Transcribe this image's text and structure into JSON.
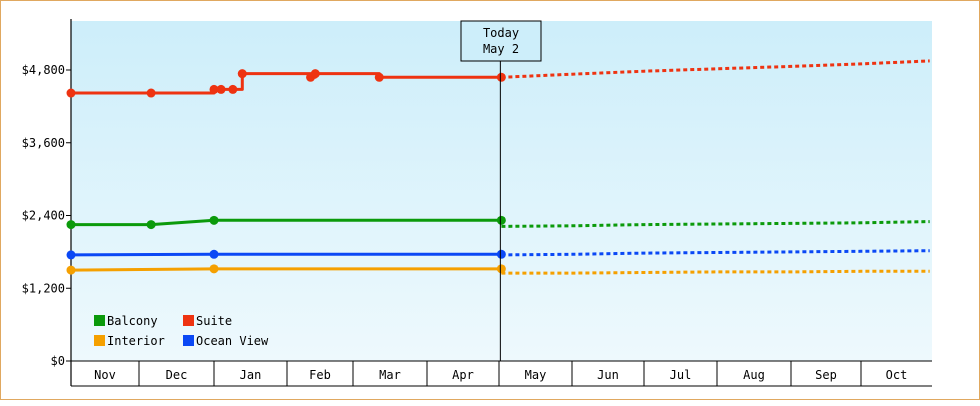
{
  "chart_data": {
    "type": "line",
    "today_label": [
      "Today",
      "May 2"
    ],
    "month_labels": [
      "Nov",
      "Dec",
      "Jan",
      "Feb",
      "Mar",
      "Apr",
      "May",
      "Jun",
      "Jul",
      "Aug",
      "Sep",
      "Oct"
    ],
    "y_ticks": [
      "$0",
      "$1,200",
      "$2,400",
      "$3,600",
      "$4,800"
    ],
    "ylim": [
      0,
      4800
    ],
    "grid": false,
    "legend_position": "bottom-left",
    "series": [
      {
        "name": "Balcony",
        "color": "#0b9a0b",
        "history_x": [
          "Nov 1",
          "Dec 6",
          "Jan 1",
          "May 2"
        ],
        "history_y": [
          2250,
          2250,
          2320,
          2320
        ],
        "history_markers": [
          "Nov 1",
          "Dec 6",
          "Jan 1",
          "May 2"
        ],
        "forecast_x": [
          "May 2",
          "Jun 1",
          "Jul 1",
          "Aug 1",
          "Sep 1",
          "Oct 1",
          "Oct 31"
        ],
        "forecast_y": [
          2220,
          2230,
          2250,
          2260,
          2270,
          2280,
          2300
        ]
      },
      {
        "name": "Suite",
        "color": "#ee3311",
        "history_x": [
          "Nov 1",
          "Dec 6",
          "Dec 28",
          "Jan 1",
          "Jan 1",
          "Jan 4",
          "Jan 9",
          "Jan 9",
          "Jan 13",
          "Jan 13",
          "Jan 29",
          "Feb 11",
          "Feb 11",
          "Feb 13",
          "Feb 13",
          "Mar 12",
          "Mar 12",
          "May 2"
        ],
        "history_y": [
          4420,
          4420,
          4420,
          4420,
          4480,
          4480,
          4480,
          4480,
          4480,
          4740,
          4740,
          4740,
          4680,
          4680,
          4740,
          4740,
          4680,
          4680
        ],
        "history_markers": [
          "Nov 1",
          "Dec 6",
          "Jan 1",
          "Jan 4",
          "Jan 9",
          "Jan 13",
          "Feb 11",
          "Feb 13",
          "Mar 12",
          "May 2"
        ],
        "forecast_x": [
          "May 2",
          "Jun 1",
          "Jul 1",
          "Aug 1",
          "Sep 1",
          "Oct 1",
          "Oct 31"
        ],
        "forecast_y": [
          4680,
          4730,
          4780,
          4820,
          4860,
          4900,
          4950
        ]
      },
      {
        "name": "Interior",
        "color": "#f5a000",
        "history_x": [
          "Nov 1",
          "Jan 1",
          "May 2"
        ],
        "history_y": [
          1500,
          1520,
          1520
        ],
        "history_markers": [
          "Nov 1",
          "Jan 1",
          "May 2"
        ],
        "forecast_x": [
          "May 2",
          "Jun 1",
          "Jul 1",
          "Aug 1",
          "Sep 1",
          "Oct 1",
          "Oct 31"
        ],
        "forecast_y": [
          1450,
          1450,
          1460,
          1470,
          1470,
          1480,
          1480
        ]
      },
      {
        "name": "Ocean View",
        "color": "#0a48f5",
        "history_x": [
          "Nov 1",
          "Jan 1",
          "May 2"
        ],
        "history_y": [
          1750,
          1760,
          1760
        ],
        "history_markers": [
          "Nov 1",
          "Jan 1",
          "May 2"
        ],
        "forecast_x": [
          "May 2",
          "Jun 1",
          "Jul 1",
          "Aug 1",
          "Sep 1",
          "Oct 1",
          "Oct 31"
        ],
        "forecast_y": [
          1750,
          1760,
          1780,
          1790,
          1800,
          1810,
          1820
        ]
      }
    ]
  }
}
